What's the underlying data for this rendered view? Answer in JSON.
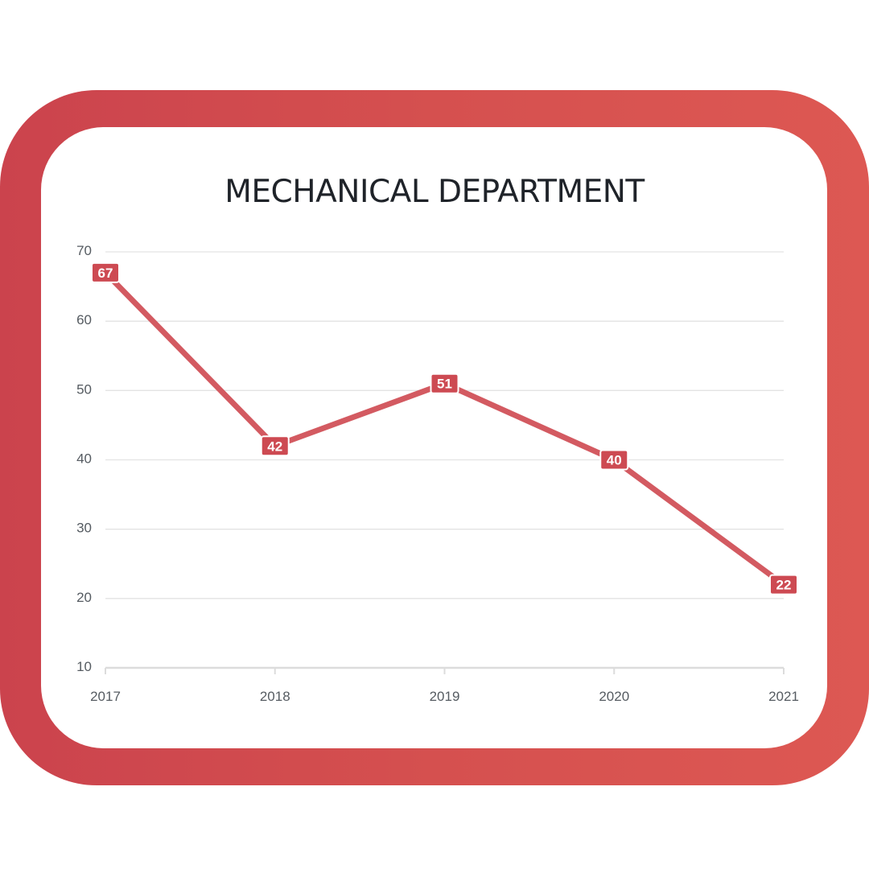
{
  "colors": {
    "frame_start": "#cb434d",
    "frame_end": "#dd5853",
    "line": "#d35a61",
    "label_bg": "#cd4a52",
    "grid": "#e3e3e3"
  },
  "chart_data": {
    "type": "line",
    "title": "MECHANICAL DEPARTMENT",
    "xlabel": "",
    "ylabel": "",
    "categories": [
      "2017",
      "2018",
      "2019",
      "2020",
      "2021"
    ],
    "series": [
      {
        "values": [
          67,
          42,
          51,
          40,
          22
        ]
      }
    ],
    "ylim": [
      10,
      70
    ],
    "yticks": [
      10,
      20,
      30,
      40,
      50,
      60,
      70
    ],
    "grid": true,
    "data_labels": true,
    "legend": "none"
  }
}
